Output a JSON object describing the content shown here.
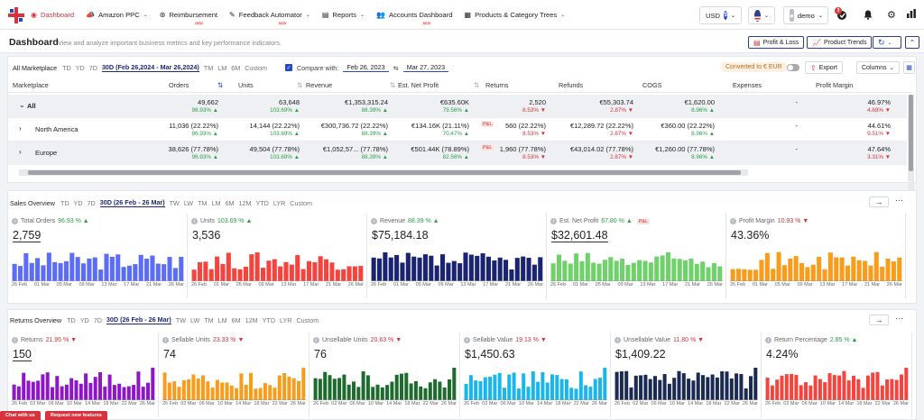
{
  "nav": {
    "items": [
      {
        "label": "Dashboard",
        "icon": "dashboard-icon",
        "active": true
      },
      {
        "label": "Amazon PPC",
        "icon": "megaphone-icon",
        "caret": true
      },
      {
        "label": "Reimbursement",
        "icon": "reimburse-icon",
        "badge": "NEW"
      },
      {
        "label": "Feedback Automator",
        "icon": "feedback-icon",
        "caret": true,
        "badge": "NEW"
      },
      {
        "label": "Reports",
        "icon": "reports-icon",
        "caret": true
      },
      {
        "label": "Accounts Dashboard",
        "icon": "accounts-icon",
        "badge": "NEW"
      },
      {
        "label": "Products & Category Trees",
        "icon": "grid-icon",
        "caret": true
      }
    ],
    "currency": "USD",
    "currency_symbol": "$",
    "user": "demo",
    "notification_count": "3",
    "user_initials": "DE"
  },
  "header": {
    "title": "Dashboard",
    "subtitle": "View and analyze important business metrics and key performance indicators.",
    "profit_loss": "Profit & Loss",
    "product_trends": "Product Trends"
  },
  "marketplace": {
    "label": "All Marketplace",
    "periods": [
      "TD",
      "YD",
      "7D"
    ],
    "selected": "30D (Feb 26,2024 - Mar 26,2024)",
    "periods_after": [
      "TM",
      "LM",
      "6M",
      "Custom"
    ],
    "compare_label": "Compare with:",
    "compare_from": "Feb 26, 2023",
    "compare_to": "Mar 27, 2023",
    "converted": "Converted to € EUR",
    "export": "Export",
    "columns": "Columns",
    "headers": [
      "Marketplace",
      "Orders",
      "Units",
      "Revenue",
      "Est. Net Profit",
      "Returns",
      "Refunds",
      "COGS",
      "Expenses",
      "Profit Margin"
    ],
    "rows": [
      {
        "name": "All",
        "expand": "⌄",
        "shade": true,
        "orders": "49,662",
        "orders_d": "96.93% ▲",
        "units": "63,648",
        "units_d": "103.69% ▲",
        "revenue": "€1,353,315.24",
        "revenue_d": "88.39% ▲",
        "profit": "€635.60K",
        "profit_d": "79.56% ▲",
        "returns": "2,520",
        "returns_d": "8.53% ▼",
        "refunds": "€55,303.74",
        "refunds_d": "2.87% ▼",
        "cogs": "€1,620.00",
        "cogs_d": "8.96% ▲",
        "expenses": "-",
        "margin": "46.97%",
        "margin_d": "4.69% ▼"
      },
      {
        "name": "North America",
        "expand": "›",
        "shade": false,
        "orders": "11,036 (22.22%)",
        "orders_d": "96.93% ▲",
        "units": "14,144 (22.22%)",
        "units_d": "103.69% ▲",
        "revenue": "€300,736.72 (22.22%)",
        "revenue_d": "88.39% ▲",
        "profit": "€134.16K (21.11%)",
        "profit_d": "70.47% ▲",
        "profit_tag": "P&L",
        "returns": "560 (22.22%)",
        "returns_d": "8.53% ▼",
        "refunds": "€12,289.72 (22.22%)",
        "refunds_d": "2.87% ▼",
        "cogs": "€360.00 (22.22%)",
        "cogs_d": "8.96% ▲",
        "expenses": "-",
        "margin": "44.61%",
        "margin_d": "9.51% ▼"
      },
      {
        "name": "Europe",
        "expand": "›",
        "shade": true,
        "orders": "38,626 (77.78%)",
        "orders_d": "96.93% ▲",
        "units": "49,504 (77.78%)",
        "units_d": "103.69% ▲",
        "revenue": "€1,052,57... (77.78%)",
        "revenue_d": "88.39% ▲",
        "profit": "€501.44K (78.89%)",
        "profit_d": "82.56% ▲",
        "profit_tag": "P&L",
        "returns": "1,960 (77.78%)",
        "returns_d": "8.53% ▼",
        "refunds": "€43,014.02 (77.78%)",
        "refunds_d": "2.87% ▼",
        "cogs": "€1,260.00 (77.78%)",
        "cogs_d": "8.96% ▲",
        "expenses": "-",
        "margin": "47.64%",
        "margin_d": "3.31% ▼"
      }
    ]
  },
  "sales": {
    "title": "Sales Overview",
    "periods": [
      "TD",
      "YD",
      "7D"
    ],
    "selected": "30D (26 Feb - 26 Mar)",
    "periods_after": [
      "TW",
      "LW",
      "TM",
      "LM",
      "6M",
      "12M",
      "YTD",
      "LYR",
      "Custom"
    ],
    "axis": [
      "26 Feb",
      "01 Mar",
      "05 Mar",
      "09 Mar",
      "13 Mar",
      "17 Mar",
      "21 Mar",
      "26 Mar"
    ],
    "metrics": [
      {
        "label": "Total Orders",
        "pct": "96.93 % ▲",
        "dir": "up",
        "value": "2,759",
        "color": "#5b6cf5",
        "ul": true
      },
      {
        "label": "Units",
        "pct": "103.69 % ▲",
        "dir": "up",
        "value": "3,536",
        "color": "#f5433d",
        "ul": false
      },
      {
        "label": "Revenue",
        "pct": "88.39 % ▲",
        "dir": "up",
        "value": "$75,184.18",
        "color": "#1a2472",
        "ul": false
      },
      {
        "label": "Est. Net Profit",
        "pct": "67.80 % ▲",
        "dir": "up",
        "value": "$32,601.48",
        "color": "#6fd16a",
        "tag": "P&L",
        "ul": true
      },
      {
        "label": "Profit Margin",
        "pct": "10.93 % ▼",
        "dir": "down",
        "value": "43.36%",
        "color": "#f99c1c",
        "ul": false
      }
    ]
  },
  "returns": {
    "title": "Returns Overview",
    "periods": [
      "TD",
      "YD",
      "7D"
    ],
    "selected": "30D (26 Feb - 26 Mar)",
    "periods_after": [
      "TW",
      "LW",
      "TM",
      "LM",
      "6M",
      "12M",
      "YTD",
      "LYR",
      "Custom"
    ],
    "axis": [
      "26 Feb",
      "02 Mar",
      "06 Mar",
      "10 Mar",
      "14 Mar",
      "18 Mar",
      "22 Mar",
      "26 Mar"
    ],
    "metrics": [
      {
        "label": "Returns",
        "pct": "21.95 % ▼",
        "dir": "down",
        "value": "150",
        "color": "#8f16c8",
        "ul": true
      },
      {
        "label": "Sellable Units",
        "pct": "23.33 % ▼",
        "dir": "down",
        "value": "74",
        "color": "#f99c1c",
        "ul": false
      },
      {
        "label": "Unsellable Units",
        "pct": "20.63 % ▼",
        "dir": "down",
        "value": "76",
        "color": "#1e6b2e",
        "ul": false
      },
      {
        "label": "Sellable Value",
        "pct": "19.13 % ▼",
        "dir": "down",
        "value": "$1,450.63",
        "color": "#19b6ea",
        "ul": false
      },
      {
        "label": "Unsellable Value",
        "pct": "11.80 % ▼",
        "dir": "down",
        "value": "$1,409.22",
        "color": "#1a2a52",
        "ul": false
      },
      {
        "label": "Return Percentage",
        "pct": "2.85 % ▲",
        "dir": "up",
        "value": "4.24%",
        "color": "#f5433d",
        "ul": false
      }
    ]
  },
  "chat": "Chat with us",
  "feature_request": "Request new features"
}
